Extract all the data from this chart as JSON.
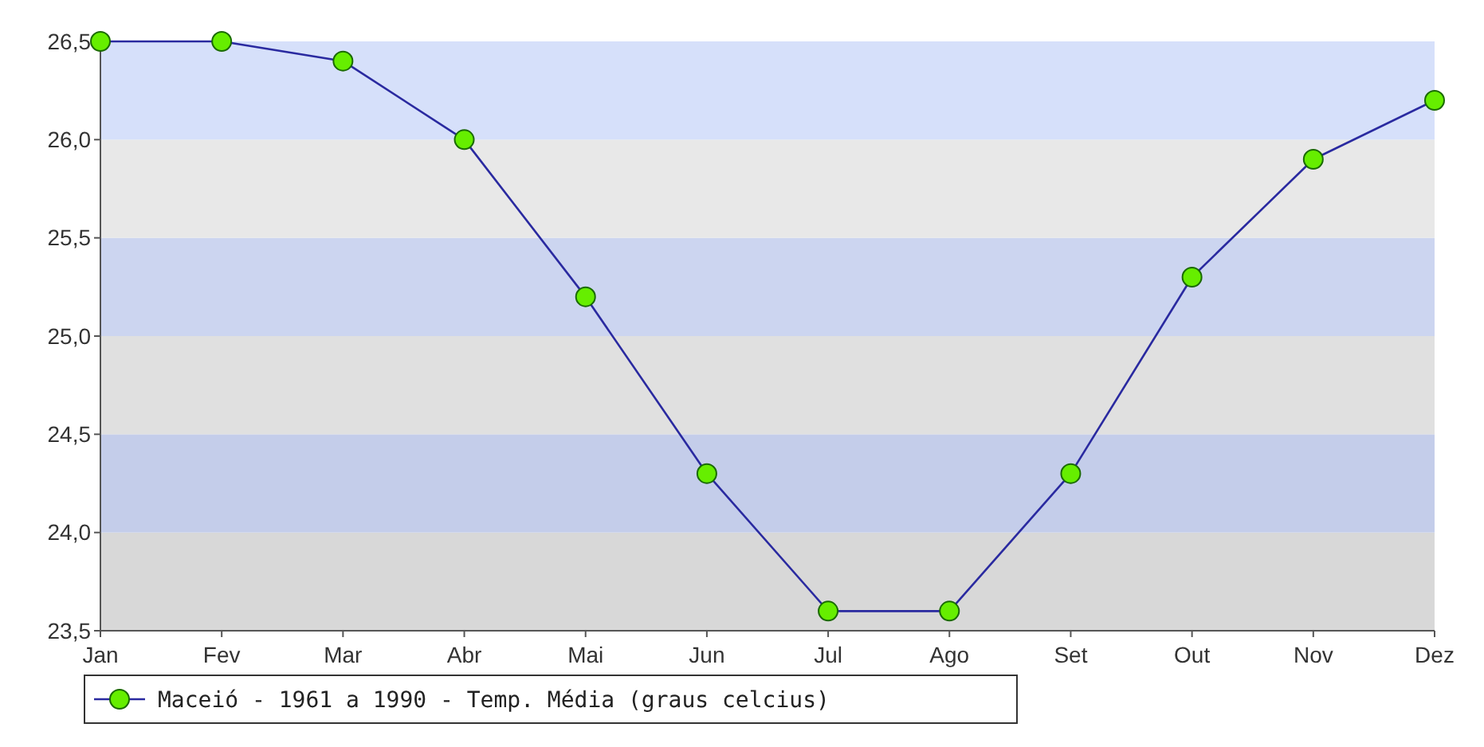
{
  "chart_data": {
    "type": "line",
    "categories": [
      "Jan",
      "Fev",
      "Mar",
      "Abr",
      "Mai",
      "Jun",
      "Jul",
      "Ago",
      "Set",
      "Out",
      "Nov",
      "Dez"
    ],
    "series": [
      {
        "name": "Maceió - 1961 a 1990 - Temp. Média (graus celcius)",
        "color": "#2a2aa0",
        "values": [
          26.5,
          26.5,
          26.4,
          26.0,
          25.2,
          24.3,
          23.6,
          23.6,
          24.3,
          25.3,
          25.9,
          26.2
        ]
      }
    ],
    "ylim": [
      23.5,
      26.5
    ],
    "yticks": [
      {
        "value": 23.5,
        "label": "23,5"
      },
      {
        "value": 24,
        "label": "24,0"
      },
      {
        "value": 24.5,
        "label": "24,5"
      },
      {
        "value": 25,
        "label": "25,0"
      },
      {
        "value": 25.5,
        "label": "25,5"
      },
      {
        "value": 26,
        "label": "26,0"
      },
      {
        "value": 26.5,
        "label": "26,5"
      }
    ],
    "bands": [
      {
        "axis": "y",
        "from": 23.5,
        "to": 24,
        "color": "#d8d8d8"
      },
      {
        "axis": "y",
        "from": 24,
        "to": 24.5,
        "color": "#c4cdea"
      },
      {
        "axis": "y",
        "from": 24.5,
        "to": 25,
        "color": "#e0e0e0"
      },
      {
        "axis": "y",
        "from": 25,
        "to": 25.5,
        "color": "#ccd5f0"
      },
      {
        "axis": "y",
        "from": 25.5,
        "to": 26,
        "color": "#e8e8e8"
      },
      {
        "axis": "y",
        "from": 26,
        "to": 26.5,
        "color": "#d6e0fa"
      }
    ],
    "marker": "circle",
    "line_style": "solid",
    "legend": "bottom left"
  }
}
